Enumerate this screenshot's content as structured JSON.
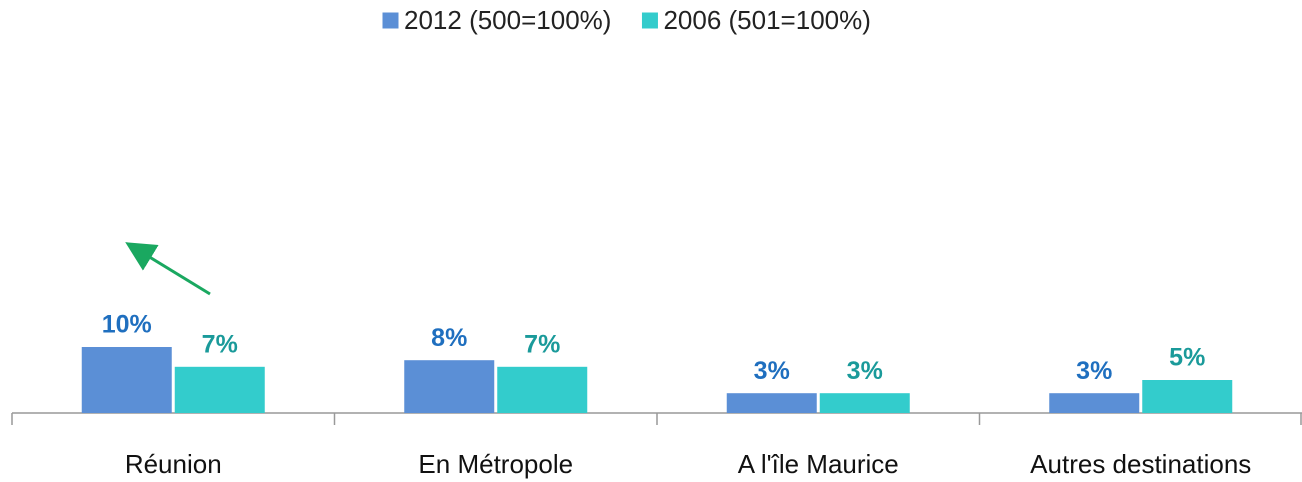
{
  "chart_data": {
    "type": "bar",
    "categories": [
      "Réunion",
      "En Métropole",
      "A l'île Maurice",
      "Autres destinations"
    ],
    "series": [
      {
        "name": "2012 (500=100%)",
        "color": "#5b8fd6",
        "label_color": "#1f6fbf",
        "values": [
          10,
          8,
          3,
          3
        ],
        "value_labels": [
          "10%",
          "8%",
          "3%",
          "3%"
        ]
      },
      {
        "name": "2006 (501=100%)",
        "color": "#33cccc",
        "label_color": "#1a9a9a",
        "values": [
          7,
          7,
          3,
          5
        ],
        "value_labels": [
          "7%",
          "7%",
          "3%",
          "5%"
        ]
      }
    ],
    "legend": "top"
  }
}
